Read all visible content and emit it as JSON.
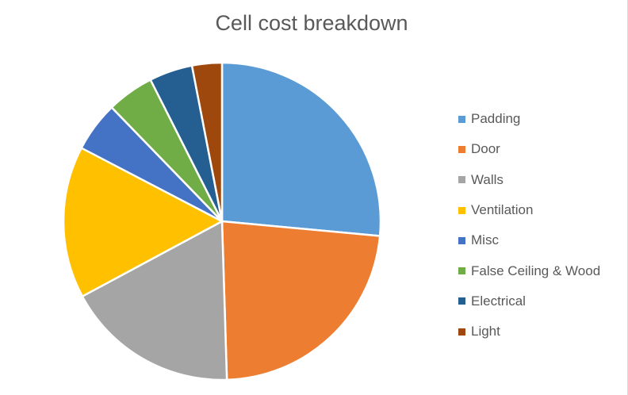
{
  "chart_data": {
    "type": "pie",
    "title": "Cell cost breakdown",
    "legend_position": "right",
    "series": [
      {
        "name": "Padding",
        "value": 27,
        "color": "#5B9BD5"
      },
      {
        "name": "Door",
        "value": 23.5,
        "color": "#ED7D31"
      },
      {
        "name": "Walls",
        "value": 18,
        "color": "#A5A5A5"
      },
      {
        "name": "Ventilation",
        "value": 15.8,
        "color": "#FFC000"
      },
      {
        "name": "Misc",
        "value": 5.2,
        "color": "#4472C4"
      },
      {
        "name": "False Ceiling & Wood",
        "value": 4.9,
        "color": "#70AD47"
      },
      {
        "name": "Electrical",
        "value": 4.5,
        "color": "#255E91"
      },
      {
        "name": "Light",
        "value": 3.1,
        "color": "#9E480E"
      }
    ]
  }
}
